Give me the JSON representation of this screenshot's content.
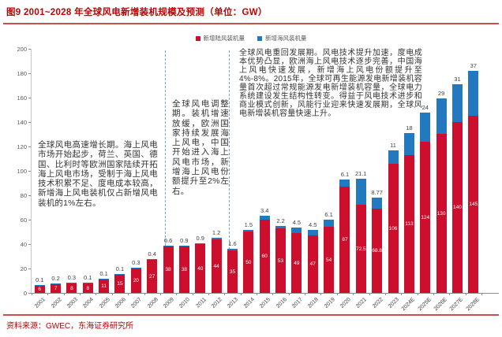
{
  "header": {
    "title": "图9  2001~2028 年全球风电新增装机规模及预测（单位：GW）"
  },
  "legend": [
    {
      "label": "新增陆风装机量",
      "color": "#ce0e2d"
    },
    {
      "label": "新增海风装机量",
      "color": "#2379bf"
    }
  ],
  "footer": {
    "source": "资料来源：GWEC，东海证券研究所"
  },
  "chart_data": {
    "type": "bar",
    "stacked": true,
    "title": "2001~2028 年全球风电新增装机规模及预测",
    "unit": "GW",
    "ylim": [
      0,
      200
    ],
    "ystep": 20,
    "grid": false,
    "legend_position": "top",
    "categories": [
      "2001",
      "2002",
      "2003",
      "2004",
      "2005",
      "2006",
      "2007",
      "2008",
      "2009",
      "2010",
      "2011",
      "2012",
      "2013",
      "2014",
      "2015",
      "2016",
      "2017",
      "2018",
      "2019",
      "2020",
      "2021",
      "2022",
      "2023",
      "2024E",
      "2025E",
      "2026E",
      "2027E",
      "2028E"
    ],
    "series": [
      {
        "name": "新增陆风装机量",
        "color": "#ce0e2d",
        "values": [
          6,
          7,
          8,
          8,
          11,
          15,
          20,
          27,
          38,
          38,
          40,
          44,
          35,
          50,
          60,
          53,
          49,
          47,
          54,
          87,
          72.5,
          68.8,
          106,
          113,
          124,
          130,
          140,
          145
        ],
        "labels": [
          "6",
          "7",
          "8",
          "8",
          "11",
          "15",
          "20",
          "27",
          "38",
          "38",
          "40",
          "44",
          "35",
          "50",
          "60",
          "53",
          "49",
          "47",
          "54",
          "87",
          "72.5",
          "68.8",
          "106",
          "113",
          "124",
          "130",
          "140",
          "145"
        ]
      },
      {
        "name": "新增海风装机量",
        "color": "#2379bf",
        "values": [
          0.1,
          0.2,
          0.3,
          0.1,
          0.1,
          0.1,
          0.3,
          0.4,
          0.6,
          0.9,
          0.9,
          1.2,
          1.6,
          1.5,
          3.4,
          2.2,
          4.5,
          4.5,
          6.1,
          6.1,
          21.1,
          8.77,
          11,
          18,
          24,
          29,
          31,
          37
        ],
        "labels": [
          "0.1",
          "0.2",
          "0.3",
          "0.1",
          "0.1",
          "0.1",
          "0.3",
          "0.4",
          "0.6",
          "0.9",
          "0.9",
          "1.2",
          "1.6",
          "1.5",
          "3.4",
          "2.2",
          "4.5",
          "4.5",
          "6.1",
          "6.1",
          "21.1",
          "8.77",
          "11",
          "18",
          "24",
          "29",
          "31",
          "37"
        ]
      }
    ],
    "separators_after_category": [
      "2008",
      "2012"
    ],
    "annotations": [
      {
        "text": "全球风电高速增长期。海上风电市场开始起步，荷兰、英国、德国、比利时等欧洲国家陆续开拓海上风电市场，受制于海上风电技术积累不足、度电成本较高，新增海上风电装机仅占新增风电装机的1%左右。"
      },
      {
        "text": "全球风电调整期。装机增速放缓，欧洲国家持续发展海上风电，中国开始进入海上风电市场，新增海上风电份额提升至2%左右。"
      },
      {
        "text": "全球风电重回发展期。风电技术提升加速，度电成本优势凸显，欧洲海上风电技术逐步完善，中国海上风电快速发展，新增海上风电份额提升至4%-8%。2015年，全球可再生能源发电新增装机容量首次超过常规能源发电新增装机容量，全球电力系统建设发生结构性转变。得益于风电技术进步和商业模式创新，风能行业迎来快速发展期，全球风电新增装机容量快速上升。"
      }
    ]
  }
}
